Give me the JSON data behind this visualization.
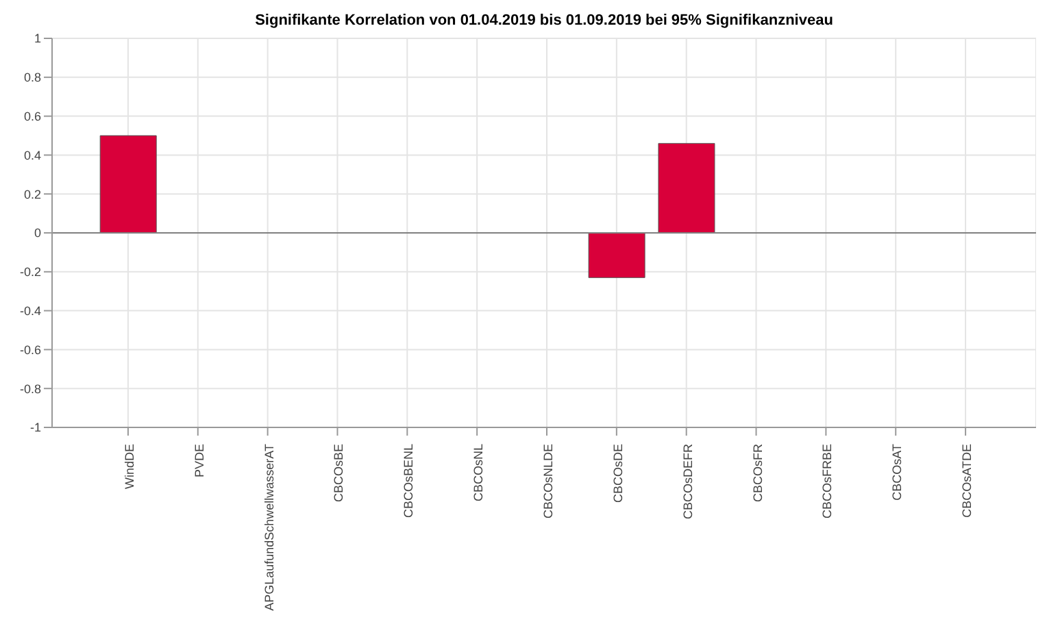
{
  "chart_data": {
    "type": "bar",
    "title": "Signifikante Korrelation von 01.04.2019 bis 01.09.2019 bei 95% Signifikanzniveau",
    "categories": [
      "WindDE",
      "PVDE",
      "APGLaufundSchwellwasserAT",
      "CBCOsBE",
      "CBCOsBENL",
      "CBCOsNL",
      "CBCOsNLDE",
      "CBCOsDE",
      "CBCOsDEFR",
      "CBCOsFR",
      "CBCOsFRBE",
      "CBCOsAT",
      "CBCOsATDE"
    ],
    "values": [
      0.5,
      0,
      0,
      0,
      0,
      0,
      0,
      -0.23,
      0.46,
      0,
      0,
      0,
      0
    ],
    "color": "#d9003a",
    "ylim": [
      -1,
      1
    ],
    "yticks": [
      -1,
      -0.8,
      -0.6,
      -0.4,
      -0.2,
      0,
      0.2,
      0.4,
      0.6,
      0.8,
      1
    ],
    "grid": true,
    "ref_lines": [
      {
        "axis": "y",
        "value": 0,
        "color": "#808080"
      }
    ]
  }
}
